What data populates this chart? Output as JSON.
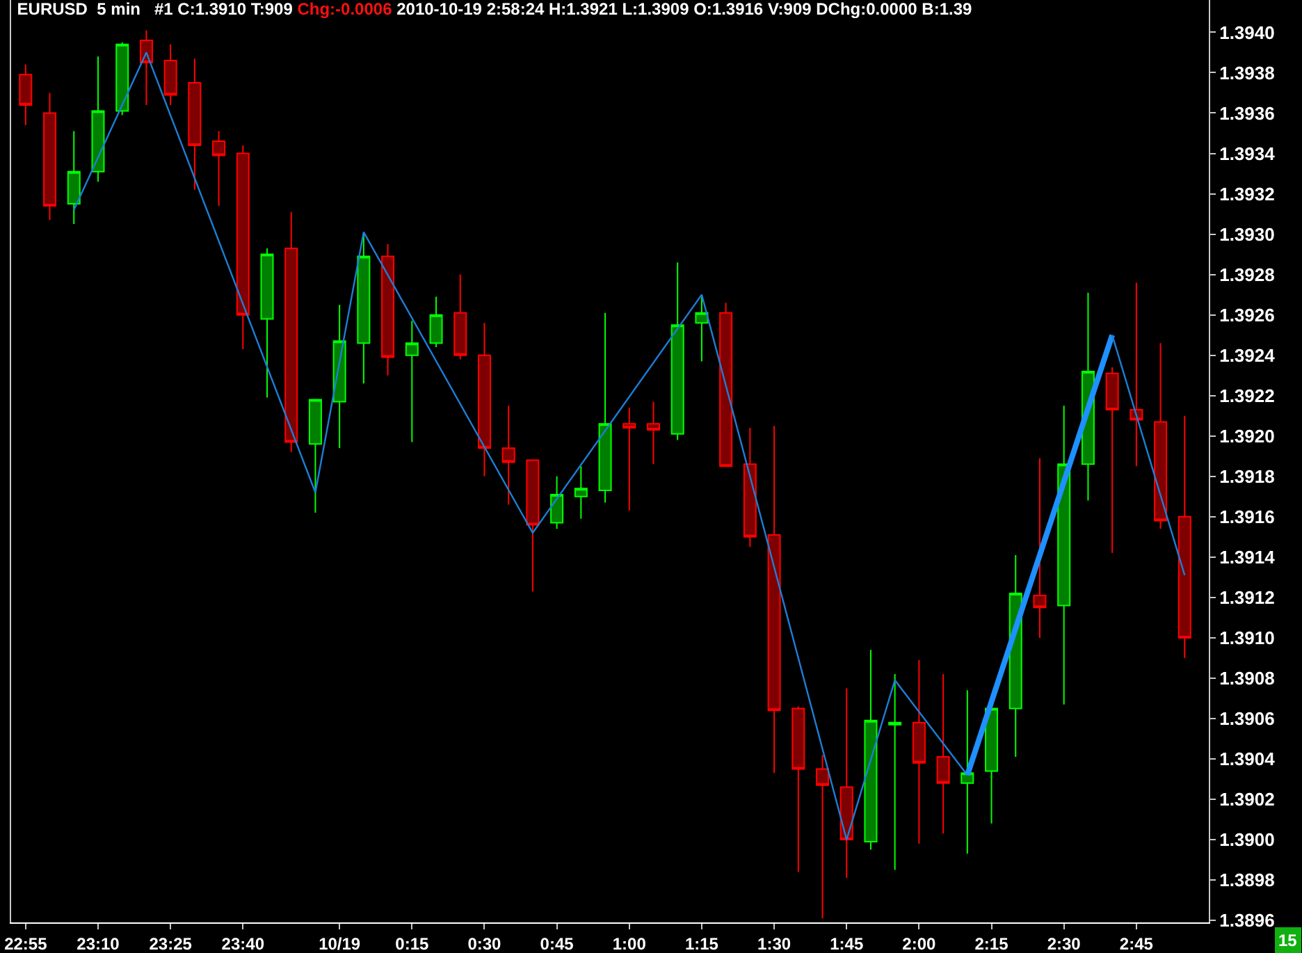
{
  "chart_data": {
    "type": "candlestick",
    "title": "EURUSD  5 min",
    "subtitle": "#1 C:1.3910 T:909 Chg:-0.0006 2010-10-19 2:58:24 H:1.3921 L:1.3909 O:1.3916 V:909 DChg:0.0000 B:1.39",
    "annotations": [
      "15"
    ],
    "x": [
      "2010-10-18T22:55",
      "2010-10-18T23:00",
      "2010-10-18T23:05",
      "2010-10-18T23:10",
      "2010-10-18T23:15",
      "2010-10-18T23:20",
      "2010-10-18T23:25",
      "2010-10-18T23:30",
      "2010-10-18T23:35",
      "2010-10-18T23:40",
      "2010-10-18T23:45",
      "2010-10-18T23:50",
      "2010-10-18T23:55",
      "2010-10-19T00:00",
      "2010-10-19T00:05",
      "2010-10-19T00:10",
      "2010-10-19T00:15",
      "2010-10-19T00:20",
      "2010-10-19T00:25",
      "2010-10-19T00:30",
      "2010-10-19T00:35",
      "2010-10-19T00:40",
      "2010-10-19T00:45",
      "2010-10-19T00:50",
      "2010-10-19T00:55",
      "2010-10-19T01:00",
      "2010-10-19T01:05",
      "2010-10-19T01:10",
      "2010-10-19T01:15",
      "2010-10-19T01:20",
      "2010-10-19T01:25",
      "2010-10-19T01:30",
      "2010-10-19T01:35",
      "2010-10-19T01:40",
      "2010-10-19T01:45",
      "2010-10-19T01:50",
      "2010-10-19T01:55",
      "2010-10-19T02:00",
      "2010-10-19T02:05",
      "2010-10-19T02:10",
      "2010-10-19T02:15",
      "2010-10-19T02:20",
      "2010-10-19T02:25",
      "2010-10-19T02:30",
      "2010-10-19T02:35",
      "2010-10-19T02:40",
      "2010-10-19T02:45",
      "2010-10-19T02:50",
      "2010-10-19T02:55"
    ],
    "ohlc": [
      [
        1.39379,
        1.39384,
        1.39354,
        1.39364
      ],
      [
        1.3936,
        1.3937,
        1.39307,
        1.39314
      ],
      [
        1.39315,
        1.39351,
        1.39305,
        1.39331
      ],
      [
        1.39331,
        1.39388,
        1.39326,
        1.39361
      ],
      [
        1.39361,
        1.39395,
        1.39359,
        1.39394
      ],
      [
        1.39396,
        1.39401,
        1.39364,
        1.39385
      ],
      [
        1.39386,
        1.39394,
        1.39364,
        1.39369
      ],
      [
        1.39375,
        1.39387,
        1.39322,
        1.39344
      ],
      [
        1.39346,
        1.39351,
        1.39314,
        1.39339
      ],
      [
        1.3934,
        1.39344,
        1.39243,
        1.3926
      ],
      [
        1.39258,
        1.39293,
        1.39219,
        1.3929
      ],
      [
        1.39293,
        1.39311,
        1.39192,
        1.39197
      ],
      [
        1.39196,
        1.39218,
        1.39162,
        1.39218
      ],
      [
        1.39217,
        1.39265,
        1.39194,
        1.39247
      ],
      [
        1.39246,
        1.393,
        1.39226,
        1.39289
      ],
      [
        1.39289,
        1.39295,
        1.3923,
        1.39239
      ],
      [
        1.3924,
        1.39257,
        1.39197,
        1.39246
      ],
      [
        1.39246,
        1.39269,
        1.39244,
        1.3926
      ],
      [
        1.39261,
        1.3928,
        1.39238,
        1.3924
      ],
      [
        1.3924,
        1.39256,
        1.3918,
        1.39194
      ],
      [
        1.39194,
        1.39215,
        1.39166,
        1.39187
      ],
      [
        1.39188,
        1.39188,
        1.39123,
        1.39156
      ],
      [
        1.39157,
        1.3918,
        1.39154,
        1.39171
      ],
      [
        1.3917,
        1.39185,
        1.39159,
        1.39174
      ],
      [
        1.39173,
        1.39261,
        1.39167,
        1.39206
      ],
      [
        1.39206,
        1.39214,
        1.39163,
        1.39204
      ],
      [
        1.39206,
        1.39217,
        1.39186,
        1.39203
      ],
      [
        1.39201,
        1.39286,
        1.39198,
        1.39255
      ],
      [
        1.39256,
        1.39269,
        1.39237,
        1.39261
      ],
      [
        1.39261,
        1.39266,
        1.39185,
        1.39185
      ],
      [
        1.39186,
        1.39204,
        1.39145,
        1.3915
      ],
      [
        1.39151,
        1.39205,
        1.39033,
        1.39064
      ],
      [
        1.39065,
        1.39066,
        1.38984,
        1.39035
      ],
      [
        1.39035,
        1.39042,
        1.38961,
        1.39027
      ],
      [
        1.39026,
        1.39075,
        1.38981,
        1.39
      ],
      [
        1.38999,
        1.39094,
        1.38995,
        1.39059
      ],
      [
        1.39057,
        1.39082,
        1.38985,
        1.39058
      ],
      [
        1.39058,
        1.39089,
        1.38998,
        1.39038
      ],
      [
        1.39041,
        1.39082,
        1.39003,
        1.39028
      ],
      [
        1.39028,
        1.39074,
        1.38993,
        1.39033
      ],
      [
        1.39034,
        1.39065,
        1.39008,
        1.39065
      ],
      [
        1.39065,
        1.39141,
        1.39041,
        1.39122
      ],
      [
        1.39121,
        1.39189,
        1.391,
        1.39115
      ],
      [
        1.39116,
        1.39215,
        1.39067,
        1.39186
      ],
      [
        1.39186,
        1.39271,
        1.39168,
        1.39232
      ],
      [
        1.39231,
        1.39234,
        1.39142,
        1.39213
      ],
      [
        1.39213,
        1.39276,
        1.39185,
        1.39208
      ],
      [
        1.39207,
        1.39246,
        1.39154,
        1.39158
      ],
      [
        1.3916,
        1.3921,
        1.3909,
        1.391
      ]
    ],
    "colors": [
      "#ff0000",
      "#ff0000",
      "#00ff00",
      "#00ff00",
      "#00ff00",
      "#ff0000",
      "#ff0000",
      "#ff0000",
      "#ff0000",
      "#ff0000",
      "#00ff00",
      "#ff0000",
      "#00ff00",
      "#00ff00",
      "#00ff00",
      "#ff0000",
      "#00ff00",
      "#00ff00",
      "#ff0000",
      "#ff0000",
      "#ff0000",
      "#ff0000",
      "#00ff00",
      "#00ff00",
      "#00ff00",
      "#ff0000",
      "#ff0000",
      "#00ff00",
      "#00ff00",
      "#ff0000",
      "#ff0000",
      "#ff0000",
      "#ff0000",
      "#ff0000",
      "#ff0000",
      "#00ff00",
      "#00ff00",
      "#ff0000",
      "#ff0000",
      "#00ff00",
      "#00ff00",
      "#00ff00",
      "#ff0000",
      "#00ff00",
      "#00ff00",
      "#ff0000",
      "#ff0000",
      "#ff0000",
      "#ff0000"
    ],
    "series": [
      {
        "type": "line",
        "color": "#1c7ed6",
        "x": [
          "2010-10-18T23:05",
          "2010-10-18T23:20",
          "2010-10-18T23:55",
          "2010-10-19T00:05",
          "2010-10-19T00:40",
          "2010-10-19T01:15",
          "2010-10-19T01:45",
          "2010-10-19T01:55",
          "2010-10-19T02:10"
        ],
        "values": [
          1.39312,
          1.3939,
          1.39172,
          1.39301,
          1.39152,
          1.3927,
          1.39,
          1.39079,
          1.39032
        ]
      },
      {
        "type": "line",
        "color": "#1e90ff",
        "x": [
          "2010-10-19T02:10",
          "2010-10-19T02:40"
        ],
        "values": [
          1.39032,
          1.3925
        ]
      },
      {
        "type": "line",
        "color": "#1c7ed6",
        "x": [
          "2010-10-19T02:40",
          "2010-10-19T02:55"
        ],
        "values": [
          1.3925,
          1.39131
        ]
      }
    ],
    "xlim": [
      "2010-10-18T22:52",
      "2010-10-19T03:00"
    ],
    "xticks": [
      {
        "value": "2010-10-18T22:55",
        "label": "22:55"
      },
      {
        "value": "2010-10-18T23:10",
        "label": "23:10"
      },
      {
        "value": "2010-10-18T23:25",
        "label": "23:25"
      },
      {
        "value": "2010-10-18T23:40",
        "label": "23:40"
      },
      {
        "value": "2010-10-19T00:00",
        "label": "10/19"
      },
      {
        "value": "2010-10-19T00:15",
        "label": "0:15"
      },
      {
        "value": "2010-10-19T00:30",
        "label": "0:30"
      },
      {
        "value": "2010-10-19T00:45",
        "label": "0:45"
      },
      {
        "value": "2010-10-19T01:00",
        "label": "1:00"
      },
      {
        "value": "2010-10-19T01:15",
        "label": "1:15"
      },
      {
        "value": "2010-10-19T01:30",
        "label": "1:30"
      },
      {
        "value": "2010-10-19T01:45",
        "label": "1:45"
      },
      {
        "value": "2010-10-19T02:00",
        "label": "2:00"
      },
      {
        "value": "2010-10-19T02:15",
        "label": "2:15"
      },
      {
        "value": "2010-10-19T02:30",
        "label": "2:30"
      },
      {
        "value": "2010-10-19T02:45",
        "label": "2:45"
      }
    ],
    "ylim": [
      1.38959,
      1.39416
    ],
    "yticks": [
      1.3896,
      1.3898,
      {
        "value": 1.39,
        "label": "1.3900"
      },
      1.3902,
      1.3904,
      1.3906,
      1.3908,
      {
        "value": 1.391,
        "label": "1.3910"
      },
      1.3912,
      1.3914,
      1.3916,
      1.3918,
      {
        "value": 1.392,
        "label": "1.3920"
      },
      1.3922,
      1.3924,
      1.3926,
      1.3928,
      {
        "value": 1.393,
        "label": "1.3930"
      },
      1.3932,
      1.3934,
      1.3936,
      1.3938,
      {
        "value": 1.394,
        "label": "1.3940"
      }
    ]
  }
}
